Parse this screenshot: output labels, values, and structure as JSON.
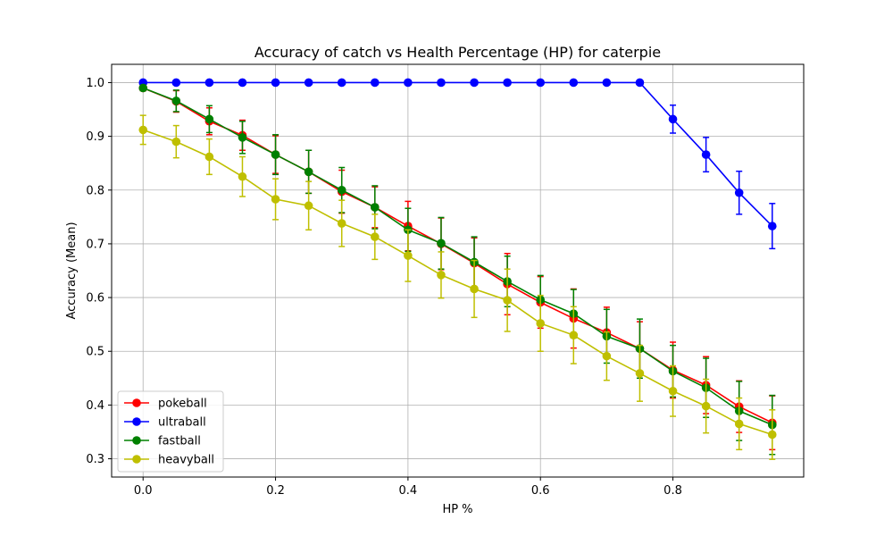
{
  "chart_data": {
    "type": "line",
    "title": "Accuracy of catch vs Health Percentage (HP) for caterpie",
    "xlabel": "HP %",
    "ylabel": "Accuracy (Mean)",
    "xlim": [
      -0.0475,
      0.9975
    ],
    "ylim": [
      0.266,
      1.034
    ],
    "xticks": [
      0.0,
      0.2,
      0.4,
      0.6,
      0.8
    ],
    "xtick_labels": [
      "0.0",
      "0.2",
      "0.4",
      "0.6",
      "0.8"
    ],
    "yticks": [
      0.3,
      0.4,
      0.5,
      0.6,
      0.7,
      0.8,
      0.9,
      1.0
    ],
    "ytick_labels": [
      "0.3",
      "0.4",
      "0.5",
      "0.6",
      "0.7",
      "0.8",
      "0.9",
      "1.0"
    ],
    "grid": true,
    "legend_position": "lower-left",
    "x": [
      0.0,
      0.05,
      0.1,
      0.15,
      0.2,
      0.25,
      0.3,
      0.35,
      0.4,
      0.45,
      0.5,
      0.55,
      0.6,
      0.65,
      0.7,
      0.75,
      0.8,
      0.85,
      0.9,
      0.95
    ],
    "series": [
      {
        "name": "pokeball",
        "color": "#ff0000",
        "values": [
          0.99,
          0.965,
          0.928,
          0.902,
          0.866,
          0.834,
          0.797,
          0.768,
          0.733,
          0.7,
          0.664,
          0.625,
          0.591,
          0.561,
          0.535,
          0.505,
          0.465,
          0.437,
          0.397,
          0.367
        ],
        "errors": [
          0.005,
          0.02,
          0.025,
          0.028,
          0.035,
          0.04,
          0.04,
          0.038,
          0.046,
          0.048,
          0.047,
          0.057,
          0.048,
          0.055,
          0.047,
          0.05,
          0.052,
          0.053,
          0.048,
          0.05
        ]
      },
      {
        "name": "ultraball",
        "color": "#0000ff",
        "values": [
          1.0,
          1.0,
          1.0,
          1.0,
          1.0,
          1.0,
          1.0,
          1.0,
          1.0,
          1.0,
          1.0,
          1.0,
          1.0,
          1.0,
          1.0,
          1.0,
          0.932,
          0.866,
          0.795,
          0.733
        ],
        "errors": [
          0,
          0,
          0,
          0,
          0,
          0,
          0,
          0,
          0,
          0,
          0,
          0,
          0,
          0,
          0,
          0,
          0.026,
          0.032,
          0.04,
          0.042
        ]
      },
      {
        "name": "fastball",
        "color": "#008000",
        "values": [
          0.99,
          0.966,
          0.932,
          0.898,
          0.866,
          0.834,
          0.8,
          0.768,
          0.726,
          0.701,
          0.666,
          0.63,
          0.596,
          0.57,
          0.528,
          0.505,
          0.463,
          0.432,
          0.389,
          0.363
        ],
        "errors": [
          0.005,
          0.02,
          0.025,
          0.03,
          0.037,
          0.04,
          0.042,
          0.04,
          0.04,
          0.048,
          0.047,
          0.047,
          0.045,
          0.045,
          0.05,
          0.055,
          0.048,
          0.055,
          0.055,
          0.055
        ]
      },
      {
        "name": "heavyball",
        "color": "#bfbf00",
        "values": [
          0.912,
          0.89,
          0.862,
          0.825,
          0.783,
          0.771,
          0.738,
          0.713,
          0.678,
          0.642,
          0.616,
          0.595,
          0.552,
          0.53,
          0.491,
          0.459,
          0.426,
          0.398,
          0.365,
          0.345
        ],
        "errors": [
          0.027,
          0.03,
          0.033,
          0.037,
          0.038,
          0.045,
          0.043,
          0.042,
          0.048,
          0.043,
          0.053,
          0.058,
          0.052,
          0.053,
          0.045,
          0.052,
          0.047,
          0.05,
          0.048,
          0.046
        ]
      }
    ]
  }
}
